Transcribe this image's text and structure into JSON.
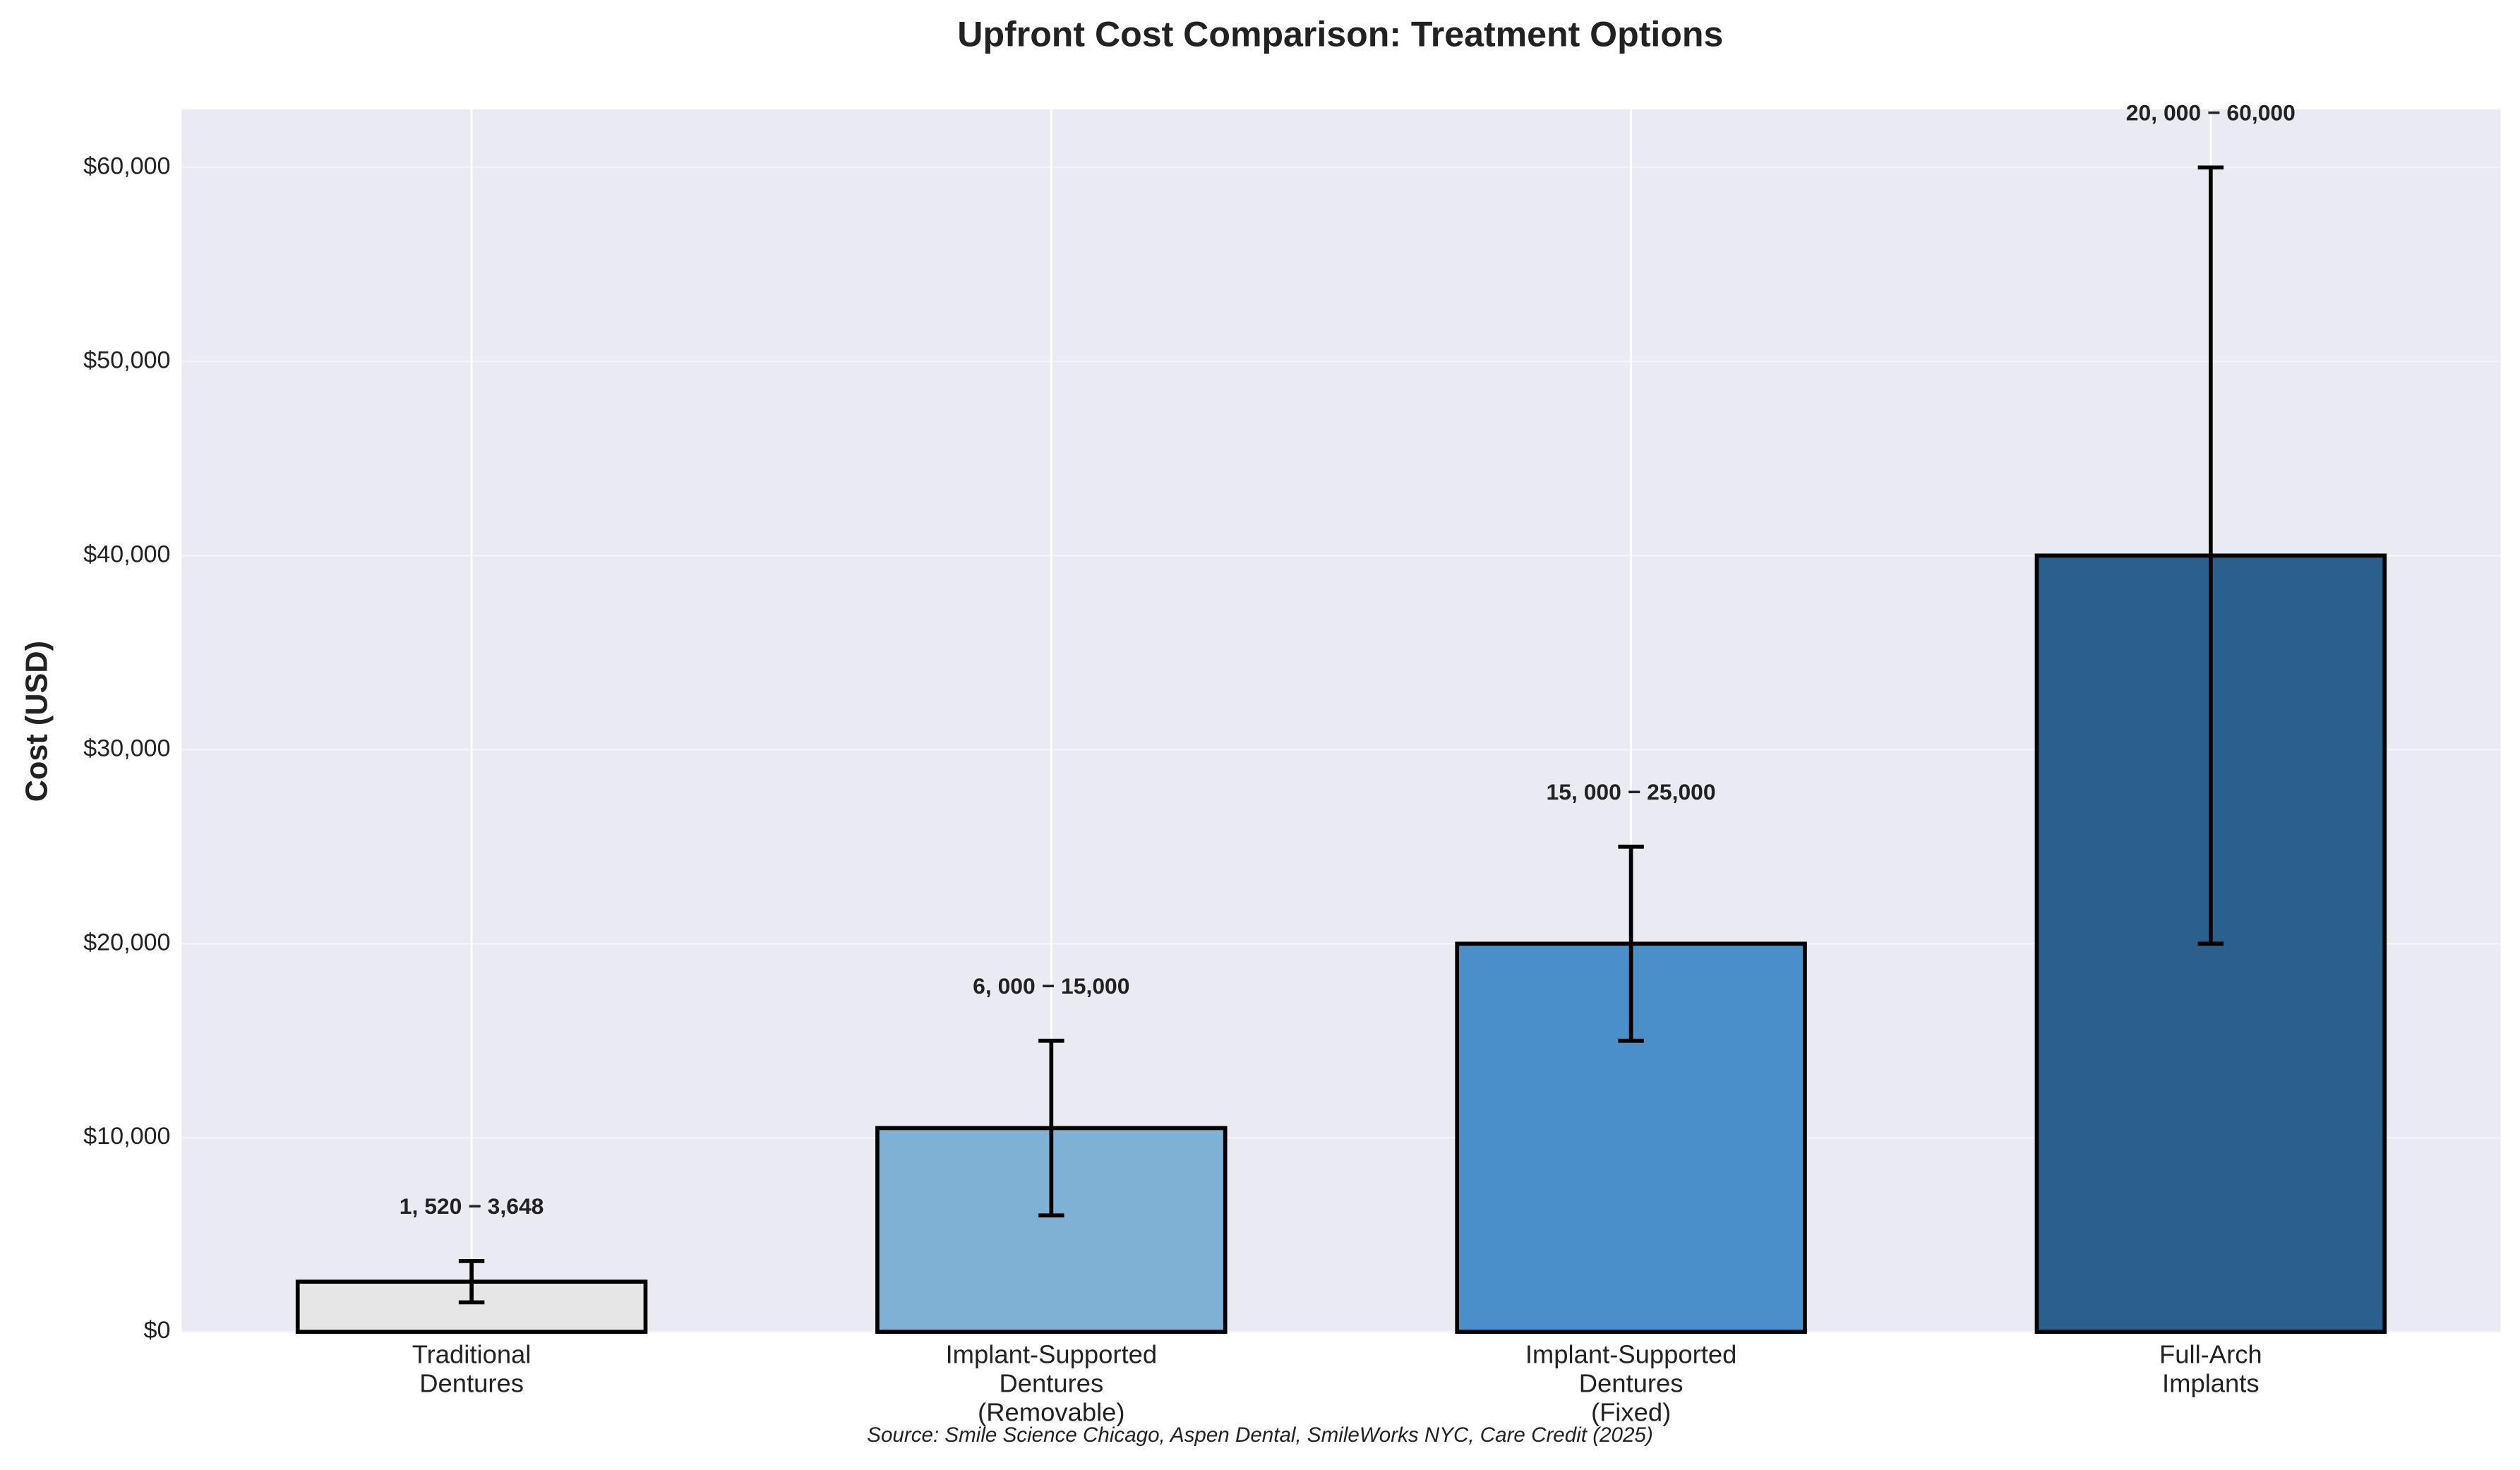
{
  "chart_data": {
    "type": "bar",
    "title": "Upfront Cost Comparison: Treatment Options",
    "y_label": "Cost (USD)",
    "source": "Source: Smile Science Chicago, Aspen Dental, SmileWorks NYC, Care Credit (2025)",
    "categories": [
      "Traditional\nDentures",
      "Implant-Supported\nDentures\n(Removable)",
      "Implant-Supported\nDentures\n(Fixed)",
      "Full-Arch\nImplants"
    ],
    "values": [
      2584,
      10500,
      20000,
      40000
    ],
    "colors": [
      "#e6e6e6",
      "#7fb1d4",
      "#4a8fc9",
      "#2b5f8c"
    ],
    "low": [
      1520,
      6000,
      15000,
      20000
    ],
    "high": [
      3648,
      15000,
      25000,
      60000
    ],
    "range_labels": [
      "1, 520 − 3,648",
      "6, 000 − 15,000",
      "15, 000 − 25,000",
      "20, 000 − 60,000"
    ],
    "ylim": [
      0,
      63000
    ],
    "yticks": [
      {
        "value": 0,
        "label": "$0"
      },
      {
        "value": 10000,
        "label": "$10,000"
      },
      {
        "value": 20000,
        "label": "$20,000"
      },
      {
        "value": 30000,
        "label": "$30,000"
      },
      {
        "value": 40000,
        "label": "$40,000"
      },
      {
        "value": 50000,
        "label": "$50,000"
      },
      {
        "value": 60000,
        "label": "$60,000"
      }
    ],
    "grid": true
  }
}
